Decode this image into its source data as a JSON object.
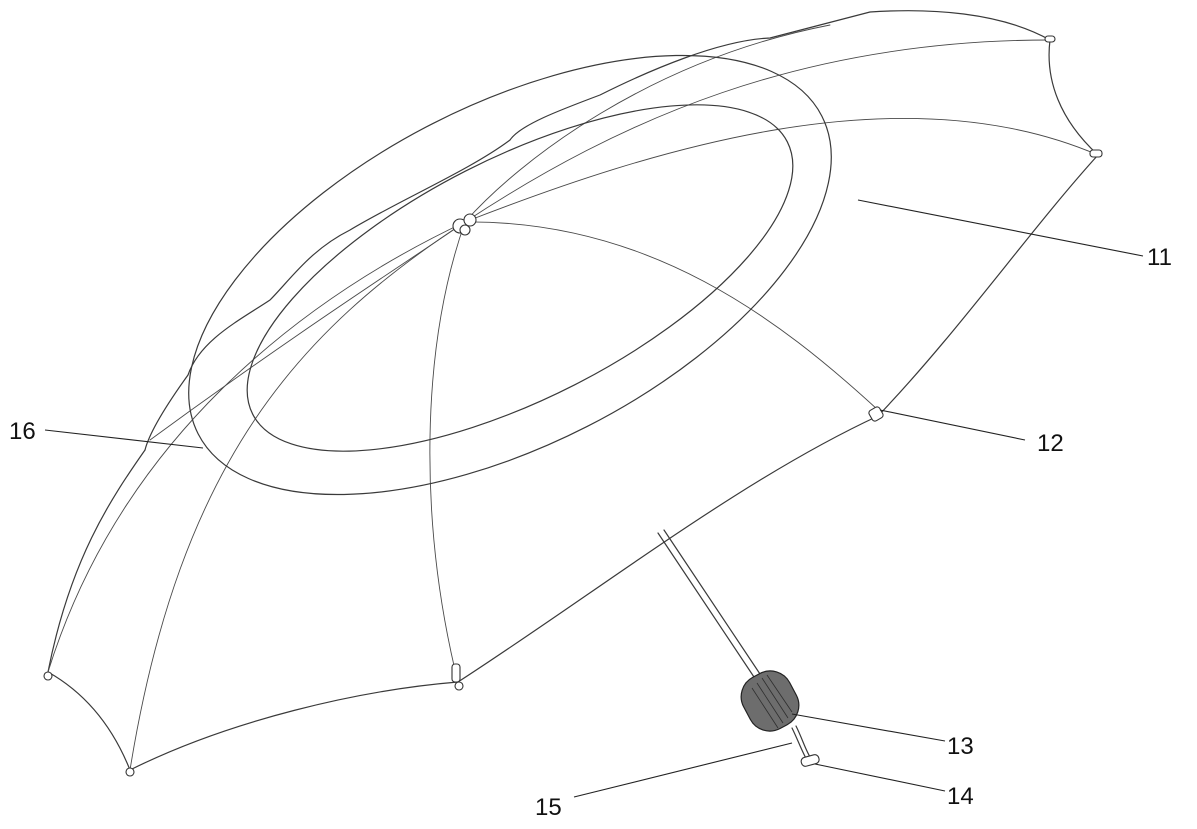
{
  "figure": {
    "labels": {
      "canopy": "11",
      "rib_tip": "12",
      "handle": "13",
      "cord_end": "14",
      "wrist_cord": "15",
      "inner_panel": "16"
    }
  }
}
